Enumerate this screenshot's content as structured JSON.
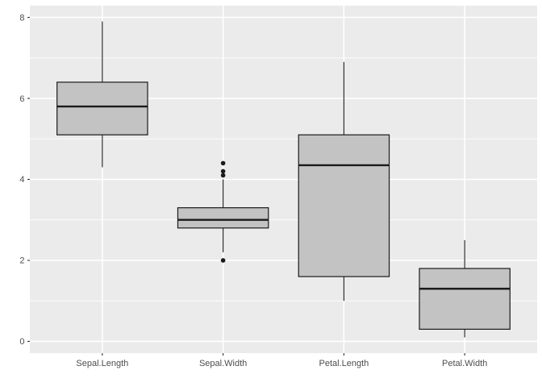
{
  "chart_data": {
    "type": "boxplot",
    "title": "",
    "xlabel": "",
    "ylabel": "",
    "categories": [
      "Sepal.Length",
      "Sepal.Width",
      "Petal.Length",
      "Petal.Width"
    ],
    "series": [
      {
        "name": "Sepal.Length",
        "whisker_low": 4.3,
        "q1": 5.1,
        "median": 5.8,
        "q3": 6.4,
        "whisker_high": 7.9,
        "outliers": []
      },
      {
        "name": "Sepal.Width",
        "whisker_low": 2.2,
        "q1": 2.8,
        "median": 3.0,
        "q3": 3.3,
        "whisker_high": 4.0,
        "outliers": [
          2.0,
          4.1,
          4.2,
          4.4
        ]
      },
      {
        "name": "Petal.Length",
        "whisker_low": 1.0,
        "q1": 1.6,
        "median": 4.35,
        "q3": 5.1,
        "whisker_high": 6.9,
        "outliers": []
      },
      {
        "name": "Petal.Width",
        "whisker_low": 0.1,
        "q1": 0.3,
        "median": 1.3,
        "q3": 1.8,
        "whisker_high": 2.5,
        "outliers": []
      }
    ],
    "y_axis": {
      "ticks": [
        0,
        2,
        4,
        6,
        8
      ],
      "minor_ticks": [
        1,
        3,
        5,
        7
      ],
      "range": [
        -0.29,
        8.29
      ]
    },
    "layout": {
      "grid": "on",
      "legend": "none",
      "box_width_fraction": 0.75,
      "band_edge_padding": 0.6
    },
    "colors": {
      "background": "#FFFFFF",
      "panel_bg": "#EBEBEB",
      "grid": "#FFFFFF",
      "box_fill": "#C3C3C3",
      "box_stroke": "#1A1A1A",
      "median_stroke": "#1A1A1A",
      "outlier_fill": "#1A1A1A",
      "axis_text": "#4D4D4D",
      "tick_mark": "#333333"
    }
  }
}
